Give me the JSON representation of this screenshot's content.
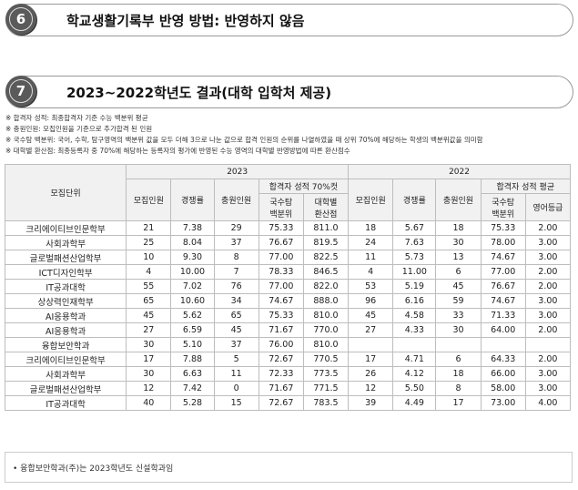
{
  "section6": {
    "num": "6",
    "title": "학교생활기록부 반영 방법: 반영하지 않음"
  },
  "section7": {
    "num": "7",
    "title": "2023~2022학년도 결과(대학 입학처 제공)"
  },
  "notes": [
    "※ 합격자 성적: 최종합격자 기준 수능 백분위 평균",
    "※ 충원인원: 모집인원을 기준으로 추가합격 된 인원",
    "※ 국수탐 백분위: 국어, 수학, 탐구영역의 백분위 값을 모두 더해 3으로 나눈 값으로 합격 인원의 순위를 나열하였을 때 상위 70%에 해당하는 학생의 백분위값을 의미함",
    "※ 대학별 환산점: 최종등록자 중 70%에 해당하는 등록자의 평가에 반영된 수능 영역의 대학별 반영방법에 따른 환산점수"
  ],
  "table": {
    "h_unit": "모집단위",
    "h_2023": "2023",
    "h_2022": "2022",
    "h_quota": "모집인원",
    "h_comp": "경쟁률",
    "h_fill": "충원인원",
    "h_score70": "합격자 성적 70%컷",
    "h_score_avg": "합격자 성적 평균",
    "h_pct_a": "국수탐",
    "h_pct_b": "백분위",
    "h_conv_a": "대학별",
    "h_conv_b": "환산점",
    "h_eng": "영어등급",
    "rows": [
      [
        "크리에이티브인문학부",
        "21",
        "7.38",
        "29",
        "75.33",
        "811.0",
        "18",
        "5.67",
        "18",
        "75.33",
        "2.00"
      ],
      [
        "사회과학부",
        "25",
        "8.04",
        "37",
        "76.67",
        "819.5",
        "24",
        "7.63",
        "30",
        "78.00",
        "3.00"
      ],
      [
        "글로벌패션산업학부",
        "10",
        "9.30",
        "8",
        "77.00",
        "822.5",
        "11",
        "5.73",
        "13",
        "74.67",
        "3.00"
      ],
      [
        "ICT디자인학부",
        "4",
        "10.00",
        "7",
        "78.33",
        "846.5",
        "4",
        "11.00",
        "6",
        "77.00",
        "2.00"
      ],
      [
        "IT공과대학",
        "55",
        "7.02",
        "76",
        "77.00",
        "822.0",
        "53",
        "5.19",
        "45",
        "76.67",
        "2.00"
      ],
      [
        "상상력인재학부",
        "65",
        "10.60",
        "34",
        "74.67",
        "888.0",
        "96",
        "6.16",
        "59",
        "74.67",
        "3.00"
      ],
      [
        "AI응용학과",
        "45",
        "5.62",
        "65",
        "75.33",
        "810.0",
        "45",
        "4.58",
        "33",
        "71.33",
        "3.00"
      ],
      [
        "AI응용학과",
        "27",
        "6.59",
        "45",
        "71.67",
        "770.0",
        "27",
        "4.33",
        "30",
        "64.00",
        "2.00"
      ],
      [
        "융합보안학과",
        "30",
        "5.10",
        "37",
        "76.00",
        "810.0",
        "",
        "",
        "",
        "",
        ""
      ],
      [
        "크리에이티브인문학부",
        "17",
        "7.88",
        "5",
        "72.67",
        "770.5",
        "17",
        "4.71",
        "6",
        "64.33",
        "2.00"
      ],
      [
        "사회과학부",
        "30",
        "6.63",
        "11",
        "72.33",
        "773.5",
        "26",
        "4.12",
        "18",
        "66.00",
        "3.00"
      ],
      [
        "글로벌패션산업학부",
        "12",
        "7.42",
        "0",
        "71.67",
        "771.5",
        "12",
        "5.50",
        "8",
        "58.00",
        "3.00"
      ],
      [
        "IT공과대학",
        "40",
        "5.28",
        "15",
        "72.67",
        "783.5",
        "39",
        "4.49",
        "17",
        "73.00",
        "4.00"
      ]
    ]
  },
  "footnote": "• 융합보안학과(주)는 2023학년도 신설학과임"
}
